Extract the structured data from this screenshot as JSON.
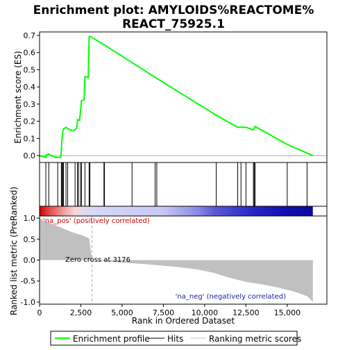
{
  "chart_data": {
    "type": "line",
    "title": "Enrichment plot: AMYLOIDS%REACTOME%\nREACT_75925.1",
    "colors": {
      "es_line": "#00ff00",
      "hit": "#000000",
      "metric_fill": "#c0c0c0",
      "pos_label": "#cc0000",
      "neg_label": "#1a1aa6",
      "zero_line": "#aaaaaa"
    },
    "enrichment_panel": {
      "ylabel": "Enrichment score (ES)",
      "ylim": [
        -0.04,
        0.72
      ],
      "yticks": [
        "0.0",
        "0.1",
        "0.2",
        "0.3",
        "0.4",
        "0.5",
        "0.6",
        "0.7"
      ],
      "ytick_values": [
        0.0,
        0.1,
        0.2,
        0.3,
        0.4,
        0.5,
        0.6,
        0.7
      ],
      "es_curve": [
        [
          0,
          0.0
        ],
        [
          380,
          -0.01
        ],
        [
          420,
          0.005
        ],
        [
          560,
          0.01
        ],
        [
          700,
          0.0
        ],
        [
          1000,
          -0.01
        ],
        [
          1280,
          -0.01
        ],
        [
          1320,
          0.03
        ],
        [
          1350,
          0.08
        ],
        [
          1400,
          0.14
        ],
        [
          1450,
          0.155
        ],
        [
          1600,
          0.165
        ],
        [
          1750,
          0.155
        ],
        [
          2000,
          0.145
        ],
        [
          2150,
          0.15
        ],
        [
          2250,
          0.16
        ],
        [
          2300,
          0.21
        ],
        [
          2420,
          0.205
        ],
        [
          2480,
          0.26
        ],
        [
          2540,
          0.32
        ],
        [
          2700,
          0.325
        ],
        [
          2750,
          0.46
        ],
        [
          2950,
          0.455
        ],
        [
          3000,
          0.69
        ],
        [
          3050,
          0.695
        ],
        [
          4000,
          0.64
        ],
        [
          7100,
          0.45
        ],
        [
          10700,
          0.235
        ],
        [
          12000,
          0.165
        ],
        [
          12500,
          0.165
        ],
        [
          12950,
          0.15
        ],
        [
          13050,
          0.17
        ],
        [
          15000,
          0.065
        ],
        [
          16200,
          0.015
        ],
        [
          16550,
          0.0
        ]
      ],
      "hits": [
        380,
        560,
        1100,
        1320,
        1360,
        1400,
        1450,
        1600,
        1700,
        2150,
        2300,
        2350,
        2480,
        2540,
        2750,
        3000,
        3050,
        3900,
        3930,
        5600,
        7000,
        7100,
        10700,
        12000,
        12200,
        12500,
        12950,
        13000,
        13050,
        15000,
        16200
      ]
    },
    "rank_panel": {
      "ylabel": "Ranked list metric (PreRanked)",
      "xlabel": "Rank in Ordered Dataset",
      "ylim": [
        -1.05,
        1.05
      ],
      "yticks": [
        "1.0",
        "0.5",
        "0.0",
        "-0.5",
        "-1.0"
      ],
      "ytick_values": [
        1.0,
        0.5,
        0.0,
        -0.5,
        -1.0
      ],
      "xlim": [
        0,
        17400
      ],
      "xticks": [
        "0",
        "2,500",
        "5,000",
        "7,500",
        "10,000",
        "12,500",
        "15,000"
      ],
      "xtick_values": [
        0,
        2500,
        5000,
        7500,
        10000,
        12500,
        15000
      ],
      "zero_cross_label": "Zero cross at 3176",
      "zero_cross_value": 3176,
      "pos_label": "'na_pos' (positively correlated)",
      "neg_label": "'na_neg' (negatively correlated)",
      "metric_curve": [
        [
          0,
          1.0
        ],
        [
          150,
          0.97
        ],
        [
          300,
          0.93
        ],
        [
          600,
          0.88
        ],
        [
          1000,
          0.82
        ],
        [
          1500,
          0.74
        ],
        [
          2000,
          0.66
        ],
        [
          2500,
          0.6
        ],
        [
          3000,
          0.52
        ],
        [
          3176,
          0.0
        ],
        [
          4000,
          -0.03
        ],
        [
          5000,
          -0.06
        ],
        [
          6500,
          -0.1
        ],
        [
          8000,
          -0.15
        ],
        [
          9500,
          -0.22
        ],
        [
          10500,
          -0.3
        ],
        [
          11500,
          -0.42
        ],
        [
          12500,
          -0.52
        ],
        [
          13500,
          -0.58
        ],
        [
          14500,
          -0.66
        ],
        [
          15500,
          -0.76
        ],
        [
          16200,
          -0.86
        ],
        [
          16400,
          -0.93
        ],
        [
          16550,
          -1.0
        ]
      ]
    },
    "color_bar": {
      "stops": [
        [
          0,
          "#d40000"
        ],
        [
          0.04,
          "#e85050"
        ],
        [
          0.09,
          "#f0a0a0"
        ],
        [
          0.13,
          "#f6d8d8"
        ],
        [
          0.19,
          "#d8d8f8"
        ],
        [
          0.45,
          "#c8c8f4"
        ],
        [
          0.58,
          "#8888e6"
        ],
        [
          0.64,
          "#5a5ad8"
        ],
        [
          0.77,
          "#2a2ac8"
        ],
        [
          0.9,
          "#1010b0"
        ],
        [
          1.0,
          "#0808a0"
        ]
      ]
    },
    "legend": [
      {
        "label": "Enrichment profile",
        "kind": "line",
        "color": "#00ff00"
      },
      {
        "label": "Hits",
        "kind": "line",
        "color": "#000000"
      },
      {
        "label": "Ranking metric scores",
        "kind": "line",
        "color": "#c0c0c0"
      }
    ]
  }
}
